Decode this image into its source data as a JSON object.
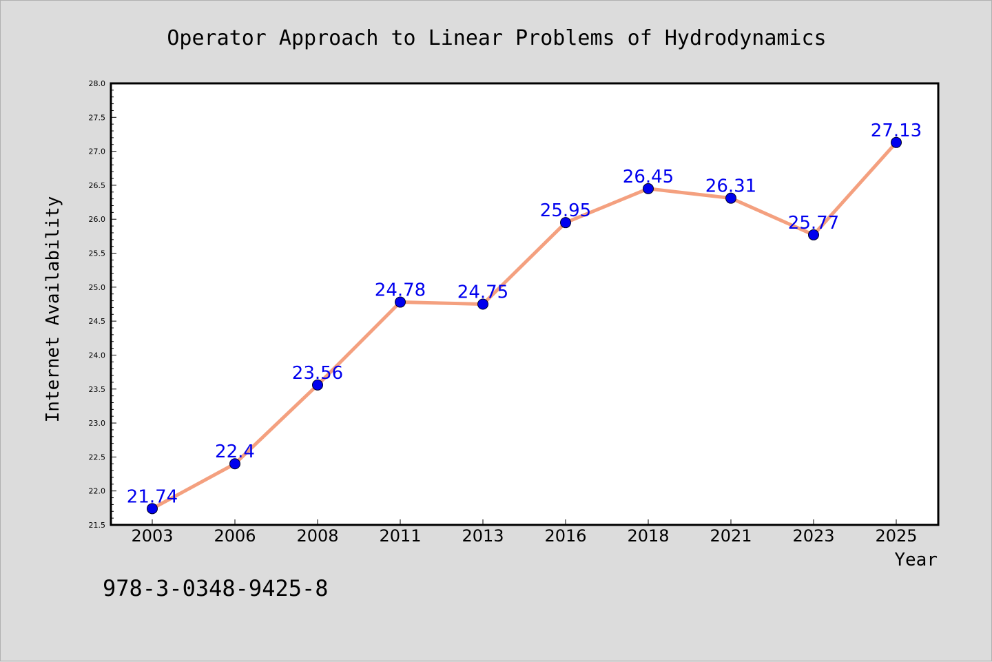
{
  "chart_data": {
    "type": "line",
    "title": "Operator Approach to Linear Problems of Hydrodynamics",
    "xlabel": "Year",
    "ylabel": "Internet Availability",
    "categories": [
      "2003",
      "2006",
      "2008",
      "2011",
      "2013",
      "2016",
      "2018",
      "2021",
      "2023",
      "2025"
    ],
    "series": [
      {
        "values": [
          21.74,
          22.4,
          23.56,
          24.78,
          24.75,
          25.95,
          26.45,
          26.31,
          25.77,
          27.13
        ],
        "data_labels": [
          "21.74",
          "22.4",
          "23.56",
          "24.78",
          "24.75",
          "25.95",
          "26.45",
          "26.31",
          "25.77",
          "27.13"
        ],
        "line_color": "#f4a07f",
        "marker_color": "#0000ee",
        "label_color": "#0000ee"
      }
    ],
    "ylim": [
      21.5,
      28.0
    ],
    "y_ticks": [
      "21.5",
      "22.0",
      "22.5",
      "23.0",
      "23.5",
      "24.0",
      "24.5",
      "25.0",
      "25.5",
      "26.0",
      "26.5",
      "27.0",
      "27.5",
      "28.0"
    ],
    "grid": false,
    "legend": "none"
  },
  "footer_text": "978-3-0348-9425-8",
  "colors": {
    "background": "#dcdcdc",
    "plot_background": "#ffffff",
    "line": "#f4a07f",
    "marker": "#0000ee",
    "data_label": "#0000ee"
  }
}
